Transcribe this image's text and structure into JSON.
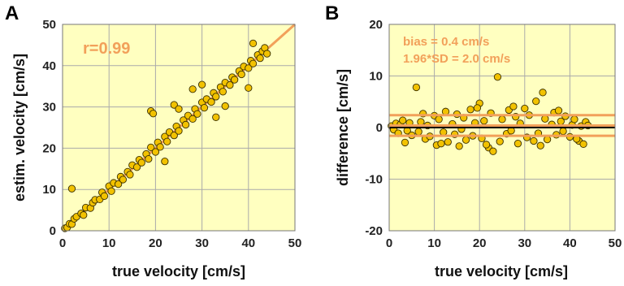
{
  "chart_data": [
    {
      "panel_label": "A",
      "type": "scatter",
      "xlabel": "true velocity [cm/s]",
      "ylabel": "estim. velocity [cm/s]",
      "xlim": [
        0,
        50
      ],
      "ylim": [
        0,
        50
      ],
      "xticks": [
        "0",
        "10",
        "20",
        "30",
        "40",
        "50"
      ],
      "yticks": [
        "0",
        "10",
        "20",
        "30",
        "40",
        "50"
      ],
      "annotations": [
        "r=0.99"
      ],
      "grid": true,
      "background": "#ffffc0",
      "marker_color": "#f2c200",
      "line_color": "#f2a05a",
      "fit_line": [
        [
          0,
          0
        ],
        [
          50,
          50
        ]
      ],
      "points": [
        [
          0.5,
          0.6
        ],
        [
          1,
          0.8
        ],
        [
          1.5,
          1.7
        ],
        [
          2,
          1.6
        ],
        [
          2.5,
          2.9
        ],
        [
          3,
          3.4
        ],
        [
          4,
          4.2
        ],
        [
          4.5,
          3.8
        ],
        [
          5,
          5.6
        ],
        [
          6,
          5.5
        ],
        [
          6.5,
          6.8
        ],
        [
          7,
          7.5
        ],
        [
          8,
          7.6
        ],
        [
          8.5,
          9.3
        ],
        [
          9,
          8.4
        ],
        [
          10,
          10.8
        ],
        [
          10.5,
          9.6
        ],
        [
          11,
          11.6
        ],
        [
          12,
          11.3
        ],
        [
          12.5,
          13.1
        ],
        [
          13,
          12.4
        ],
        [
          14,
          14.3
        ],
        [
          14.5,
          13.6
        ],
        [
          15,
          15.9
        ],
        [
          16,
          15.4
        ],
        [
          16.5,
          17.2
        ],
        [
          17,
          16.5
        ],
        [
          18,
          18.6
        ],
        [
          18.5,
          17.4
        ],
        [
          19,
          20.2
        ],
        [
          20,
          19.1
        ],
        [
          20.5,
          21.4
        ],
        [
          21,
          20.3
        ],
        [
          22,
          22.8
        ],
        [
          22.5,
          21.6
        ],
        [
          23,
          23.9
        ],
        [
          24,
          23.1
        ],
        [
          24.5,
          25.3
        ],
        [
          25,
          24.2
        ],
        [
          26,
          26.8
        ],
        [
          26.5,
          25.7
        ],
        [
          27,
          27.9
        ],
        [
          28,
          27.1
        ],
        [
          28.5,
          29.5
        ],
        [
          29,
          28.3
        ],
        [
          30,
          31.1
        ],
        [
          30.5,
          29.8
        ],
        [
          31,
          31.9
        ],
        [
          32,
          31.2
        ],
        [
          32.5,
          33.4
        ],
        [
          33,
          32.5
        ],
        [
          34,
          34.8
        ],
        [
          34.5,
          33.7
        ],
        [
          35,
          35.9
        ],
        [
          36,
          35.3
        ],
        [
          36.5,
          37.2
        ],
        [
          37,
          36.6
        ],
        [
          38,
          38.7
        ],
        [
          38.5,
          37.9
        ],
        [
          39,
          39.8
        ],
        [
          40,
          39.4
        ],
        [
          40.5,
          41.2
        ],
        [
          41,
          40.5
        ],
        [
          42,
          42.6
        ],
        [
          42.5,
          41.8
        ],
        [
          43,
          43.5
        ],
        [
          43.5,
          44.3
        ],
        [
          44,
          42.9
        ],
        [
          2,
          10.2
        ],
        [
          19,
          29
        ],
        [
          19.5,
          28.4
        ],
        [
          24,
          30.5
        ],
        [
          33,
          27.5
        ],
        [
          22,
          16.8
        ],
        [
          25,
          29.5
        ],
        [
          30,
          35.4
        ],
        [
          35,
          30.2
        ],
        [
          40,
          34.6
        ],
        [
          41,
          45.4
        ],
        [
          28,
          34.3
        ]
      ]
    },
    {
      "panel_label": "B",
      "type": "scatter",
      "xlabel": "true velocity [cm/s]",
      "ylabel": "difference [cm/s]",
      "xlim": [
        0,
        50
      ],
      "ylim": [
        -20,
        20
      ],
      "xticks": [
        "0",
        "10",
        "20",
        "30",
        "40",
        "50"
      ],
      "yticks": [
        "-20",
        "-10",
        "0",
        "10",
        "20"
      ],
      "annotations": [
        "bias = 0.4 cm/s",
        "1.96*SD = 2.0 cm/s"
      ],
      "grid": true,
      "background": "#ffffc0",
      "marker_color": "#f2c200",
      "line_color": "#f2a05a",
      "bias": 0.4,
      "limits": [
        -1.6,
        2.4
      ],
      "zero_line": true,
      "points": [
        [
          0.5,
          0.3
        ],
        [
          1,
          -0.4
        ],
        [
          1.5,
          0.8
        ],
        [
          2,
          -1.1
        ],
        [
          2.5,
          0.6
        ],
        [
          3,
          1.4
        ],
        [
          4,
          -0.6
        ],
        [
          4.5,
          0.9
        ],
        [
          5,
          -1.5
        ],
        [
          6,
          7.8
        ],
        [
          6.5,
          -0.8
        ],
        [
          7,
          1.1
        ],
        [
          8,
          -2.2
        ],
        [
          8.5,
          0.4
        ],
        [
          9,
          -1.7
        ],
        [
          10,
          2.3
        ],
        [
          10.5,
          -3.4
        ],
        [
          11,
          1.6
        ],
        [
          12,
          -0.9
        ],
        [
          12.5,
          3.1
        ],
        [
          13,
          -2.8
        ],
        [
          14,
          0.7
        ],
        [
          14.5,
          -1.3
        ],
        [
          15,
          2.6
        ],
        [
          16,
          -0.3
        ],
        [
          16.5,
          1.9
        ],
        [
          17,
          -2.4
        ],
        [
          18,
          3.5
        ],
        [
          18.5,
          -1.6
        ],
        [
          19,
          0.9
        ],
        [
          20,
          4.7
        ],
        [
          20.5,
          -2.1
        ],
        [
          21,
          1.3
        ],
        [
          22,
          -3.9
        ],
        [
          22.5,
          2.8
        ],
        [
          23,
          -4.6
        ],
        [
          24,
          9.8
        ],
        [
          24.5,
          -2.7
        ],
        [
          25,
          1.6
        ],
        [
          26,
          -1.2
        ],
        [
          26.5,
          3.4
        ],
        [
          27,
          -0.6
        ],
        [
          28,
          2.1
        ],
        [
          28.5,
          -3.1
        ],
        [
          29,
          0.8
        ],
        [
          30,
          3.7
        ],
        [
          30.5,
          -1.9
        ],
        [
          31,
          2.4
        ],
        [
          32,
          -2.6
        ],
        [
          32.5,
          5.1
        ],
        [
          33,
          -1.1
        ],
        [
          34,
          6.8
        ],
        [
          34.5,
          1.7
        ],
        [
          35,
          -2.3
        ],
        [
          36,
          0.6
        ],
        [
          36.5,
          2.9
        ],
        [
          37,
          -1.4
        ],
        [
          38,
          1.2
        ],
        [
          38.5,
          -0.7
        ],
        [
          39,
          2.2
        ],
        [
          40,
          -1.8
        ],
        [
          40.5,
          0.5
        ],
        [
          41,
          1.6
        ],
        [
          42,
          -2.6
        ],
        [
          42.5,
          0.3
        ],
        [
          43,
          -3.2
        ],
        [
          43.5,
          1.1
        ],
        [
          44,
          0.4
        ],
        [
          3.5,
          -2.9
        ],
        [
          7.5,
          2.7
        ],
        [
          11.5,
          -3.1
        ],
        [
          15.5,
          -3.6
        ],
        [
          19.5,
          3.8
        ],
        [
          21.5,
          -3.3
        ],
        [
          27.5,
          4.1
        ],
        [
          33.5,
          -3.5
        ],
        [
          37.5,
          3.3
        ],
        [
          41.5,
          -2.2
        ]
      ]
    }
  ]
}
